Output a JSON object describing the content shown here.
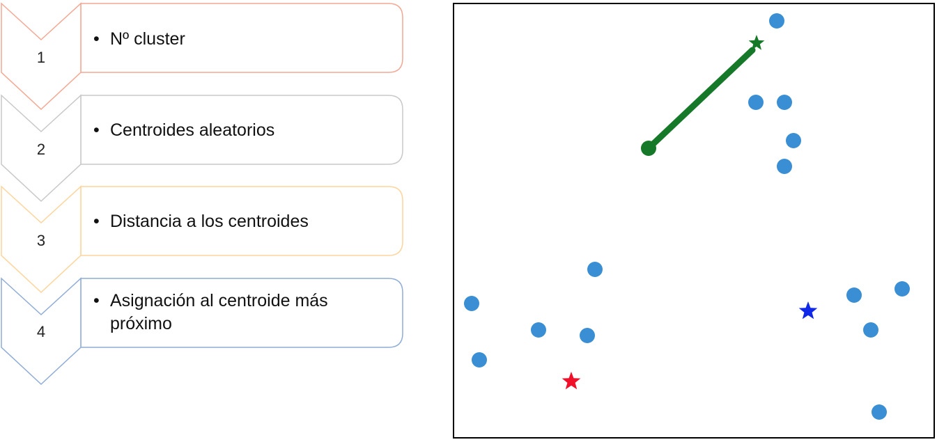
{
  "process_steps": [
    {
      "number": "1",
      "text": "Nº cluster",
      "color": "#f4a793"
    },
    {
      "number": "2",
      "text": "Centroides aleatorios",
      "color": "#c8c8c8"
    },
    {
      "number": "3",
      "text": "Distancia a los centroides",
      "color": "#fdd49b"
    },
    {
      "number": "4",
      "text": "Asignación al centroide más próximo",
      "color": "#8facd6"
    }
  ],
  "bullet_symbol": "•",
  "scatter": {
    "frame_color": "#000000",
    "point_color": "#3a8fd4",
    "point_icon": "circle-point",
    "centroid_icon": "star",
    "centroids": [
      {
        "name": "green",
        "color": "#16792a"
      },
      {
        "name": "blue",
        "color": "#1028e8"
      },
      {
        "name": "red",
        "color": "#f0102a"
      }
    ],
    "distance_line_color": "#16792a"
  }
}
